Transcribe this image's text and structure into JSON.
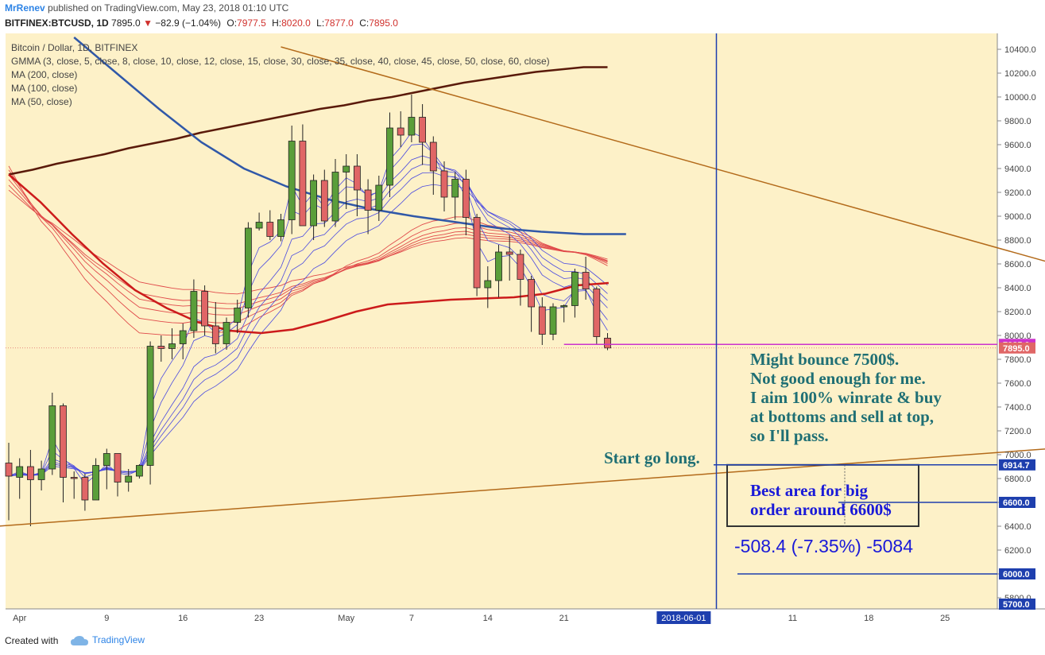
{
  "header": {
    "author": "MrRenev",
    "published": "published on TradingView.com, May 23, 2018 01:10 UTC",
    "symbol": "BITFINEX:BTCUSD, 1D",
    "last": "7895.0",
    "change": "−82.9 (−1.04%)",
    "o": "7977.5",
    "h": "8020.0",
    "l": "7877.0",
    "c": "7895.0"
  },
  "legend": {
    "title": "Bitcoin / Dollar, 1D, BITFINEX",
    "gmma": "GMMA (3, close, 5, close, 8, close, 10, close, 12, close, 15, close, 30, close, 35, close, 40, close, 45, close, 50, close, 60, close)",
    "ma200": "MA (200, close)",
    "ma100": "MA (100, close)",
    "ma50": "MA (50, close)"
  },
  "annotations": {
    "bounce": [
      "Might bounce 7500$.",
      "Not good enough for me.",
      "I aim 100% winrate & buy",
      "at bottoms and sell at top,",
      "so I'll pass."
    ],
    "long": "Start go long.",
    "best": [
      "Best area for big",
      "order around 6600$"
    ],
    "measure": "-508.4 (-7.35%) -5084"
  },
  "footer": {
    "created": "Created with",
    "brand": "TradingView"
  },
  "colors": {
    "bg": "#fdf1c8",
    "up": "#5a9e3a",
    "down": "#e06666",
    "ma200": "#5a1a0a",
    "ma100": "#3058a8",
    "ma50": "#cc1b1b",
    "gmmaShort": "#4a4ae0",
    "gmmaLong": "#e04a4a",
    "trend": "#b36a1a",
    "marker": "#1e3fae",
    "hline": "#cc33cc"
  },
  "chart_data": {
    "type": "candlestick",
    "y_ticks": [
      "10400.0",
      "10200.0",
      "10000.0",
      "9800.0",
      "9600.0",
      "9400.0",
      "9200.0",
      "9000.0",
      "8800.0",
      "8600.0",
      "8400.0",
      "8200.0",
      "8000.0",
      "7800.0",
      "7600.0",
      "7400.0",
      "7200.0",
      "7000.0",
      "6800.0",
      "6600.0",
      "6400.0",
      "6200.0",
      "6000.0",
      "5800.0"
    ],
    "ylim": [
      5700,
      10500
    ],
    "price_labels": [
      {
        "value": 7925.0,
        "text": "7925.0",
        "color": "#cc33cc"
      },
      {
        "value": 7895.0,
        "text": "7895.0",
        "color": "#e06666"
      },
      {
        "value": 6914.7,
        "text": "6914.7",
        "color": "#1e3fae"
      },
      {
        "value": 6600.0,
        "text": "6600.0",
        "color": "#1e3fae"
      },
      {
        "value": 6000.0,
        "text": "6000.0",
        "color": "#1e3fae"
      },
      {
        "value": 5700.0,
        "text": "5700.0",
        "color": "#1e3fae"
      }
    ],
    "x_ticks": [
      {
        "day": 1,
        "label": "Apr"
      },
      {
        "day": 9,
        "label": "9"
      },
      {
        "day": 16,
        "label": "16"
      },
      {
        "day": 23,
        "label": "23"
      },
      {
        "day": 31,
        "label": "May"
      },
      {
        "day": 37,
        "label": "7"
      },
      {
        "day": 44,
        "label": "14"
      },
      {
        "day": 51,
        "label": "21"
      },
      {
        "day": 62,
        "label": "2018-06-01"
      },
      {
        "day": 72,
        "label": "11"
      },
      {
        "day": 79,
        "label": "18"
      },
      {
        "day": 86,
        "label": "25"
      }
    ],
    "candles": [
      [
        6930,
        7100,
        6450,
        6820
      ],
      [
        6810,
        6970,
        6630,
        6900
      ],
      [
        6900,
        7040,
        6400,
        6790
      ],
      [
        6790,
        6950,
        6700,
        6880
      ],
      [
        6880,
        7520,
        6830,
        7410
      ],
      [
        7410,
        7430,
        6600,
        6810
      ],
      [
        6810,
        6860,
        6630,
        6800
      ],
      [
        6810,
        6840,
        6530,
        6620
      ],
      [
        6620,
        6970,
        6620,
        6910
      ],
      [
        6910,
        7050,
        6710,
        7010
      ],
      [
        7010,
        7000,
        6650,
        6770
      ],
      [
        6770,
        6880,
        6690,
        6820
      ],
      [
        6820,
        6920,
        6800,
        6910
      ],
      [
        6910,
        7950,
        6750,
        7910
      ],
      [
        7910,
        8000,
        7780,
        7890
      ],
      [
        7890,
        8060,
        7800,
        7930
      ],
      [
        7930,
        8100,
        7800,
        8040
      ],
      [
        8040,
        8470,
        7980,
        8370
      ],
      [
        8370,
        8420,
        8000,
        8080
      ],
      [
        8080,
        8280,
        7850,
        7930
      ],
      [
        7930,
        8150,
        7880,
        8110
      ],
      [
        8110,
        8300,
        8020,
        8230
      ],
      [
        8230,
        8950,
        8150,
        8900
      ],
      [
        8900,
        9030,
        8880,
        8950
      ],
      [
        8950,
        9050,
        8800,
        8830
      ],
      [
        8830,
        9020,
        8790,
        8970
      ],
      [
        8970,
        9760,
        8850,
        9630
      ],
      [
        9630,
        9770,
        8920,
        8920
      ],
      [
        8920,
        9350,
        8800,
        9300
      ],
      [
        9300,
        9390,
        8910,
        8960
      ],
      [
        8960,
        9480,
        8910,
        9370
      ],
      [
        9370,
        9520,
        9060,
        9420
      ],
      [
        9420,
        9520,
        9000,
        9220
      ],
      [
        9220,
        9310,
        8850,
        9050
      ],
      [
        9050,
        9340,
        8960,
        9260
      ],
      [
        9260,
        9870,
        9160,
        9740
      ],
      [
        9740,
        9880,
        9580,
        9680
      ],
      [
        9680,
        10020,
        9620,
        9830
      ],
      [
        9830,
        9940,
        9430,
        9620
      ],
      [
        9620,
        9670,
        9180,
        9380
      ],
      [
        9380,
        9460,
        9040,
        9160
      ],
      [
        9160,
        9370,
        8970,
        9310
      ],
      [
        9310,
        9390,
        8840,
        8990
      ],
      [
        8990,
        9020,
        8330,
        8400
      ],
      [
        8400,
        8580,
        8230,
        8460
      ],
      [
        8460,
        8760,
        8320,
        8700
      ],
      [
        8700,
        8840,
        8460,
        8680
      ],
      [
        8680,
        8720,
        8250,
        8470
      ],
      [
        8470,
        8500,
        8030,
        8240
      ],
      [
        8240,
        8320,
        7920,
        8010
      ],
      [
        8010,
        8270,
        7960,
        8240
      ],
      [
        8240,
        8260,
        8110,
        8250
      ],
      [
        8250,
        8560,
        8150,
        8530
      ],
      [
        8530,
        8660,
        8300,
        8390
      ],
      [
        8390,
        8410,
        7930,
        7990
      ],
      [
        7977.5,
        8020,
        7877,
        7895
      ]
    ],
    "series": [
      {
        "name": "MA (200, close)",
        "values": [
          9350,
          9390,
          9440,
          9480,
          9520,
          9570,
          9610,
          9650,
          9700,
          9740,
          9780,
          9820,
          9860,
          9900,
          9930,
          9970,
          10000,
          10040,
          10080,
          10120,
          10150,
          10180,
          10210,
          10230,
          10250,
          10250
        ]
      },
      {
        "name": "MA (100, close)",
        "values": [
          10500,
          10200,
          9900,
          9620,
          9400,
          9250,
          9140,
          9060,
          9000,
          8950,
          8900,
          8870,
          8850,
          8850
        ]
      },
      {
        "name": "MA (50, close)",
        "values": [
          9350,
          9120,
          8850,
          8600,
          8380,
          8230,
          8110,
          8040,
          8020,
          8050,
          8120,
          8200,
          8260,
          8280,
          8300,
          8310,
          8320,
          8350,
          8420,
          8440
        ]
      }
    ],
    "trendlines": [
      {
        "from": [
          -1,
          6400
        ],
        "to": [
          100,
          7080
        ]
      },
      {
        "from": [
          25,
          10420
        ],
        "to": [
          100,
          8500
        ]
      }
    ],
    "date_marker": "2018-06-01",
    "range_box": {
      "from_day": 62,
      "to_day": 72,
      "top": 6914.7,
      "bottom": 6600
    }
  }
}
